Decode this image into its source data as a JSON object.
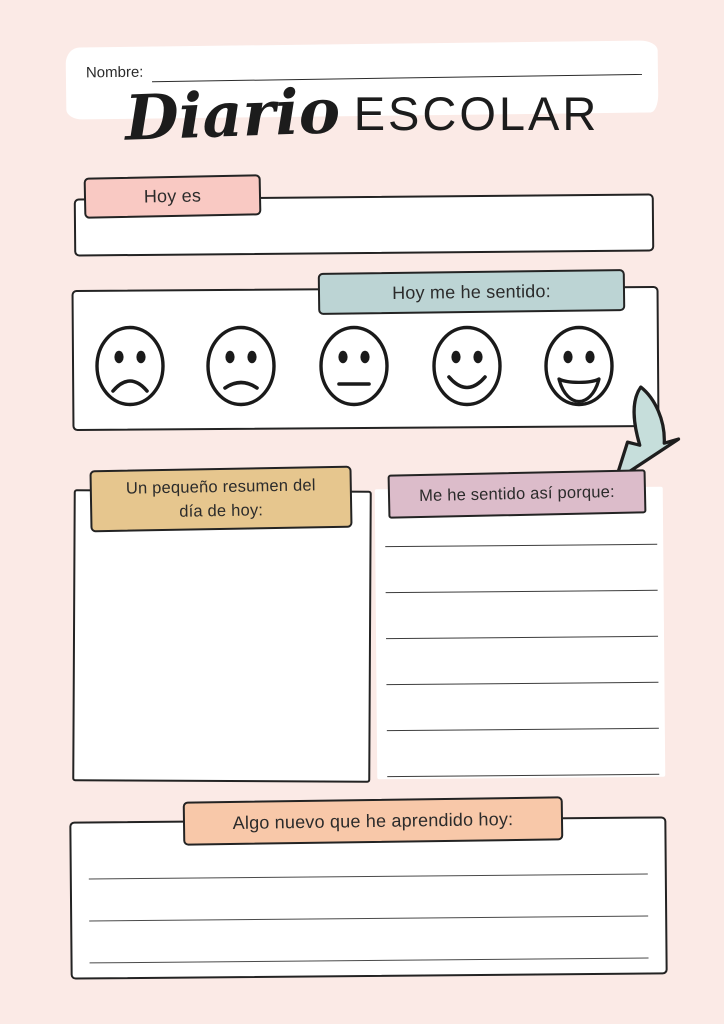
{
  "page": {
    "name_label": "Nombre:",
    "name_value": "",
    "title_script": "Diario",
    "title_caps": "ESCOLAR"
  },
  "colors": {
    "background": "#fbeae6",
    "ink": "#232323",
    "date_tab": "#f9c9c3",
    "feelings_tab": "#bcd4d4",
    "summary_tab": "#e6c68e",
    "reason_tab": "#dcbcca",
    "learned_tab": "#f8c8a9",
    "arrow": "#c6dedb"
  },
  "sections": {
    "date": {
      "label": "Hoy es"
    },
    "feelings": {
      "label": "Hoy me he sentido:",
      "faces": [
        {
          "label": "very sad"
        },
        {
          "label": "sad"
        },
        {
          "label": "neutral"
        },
        {
          "label": "happy"
        },
        {
          "label": "very happy"
        }
      ]
    },
    "summary": {
      "label_line1": "Un pequeño resumen del",
      "label_line2": "día de hoy:"
    },
    "reason": {
      "label": "Me he sentido así porque:",
      "line_count": 6
    },
    "learned": {
      "label": "Algo nuevo que he aprendido hoy:",
      "line_count": 3
    }
  },
  "icons": {
    "arrow": "curved-arrow-down-left"
  }
}
